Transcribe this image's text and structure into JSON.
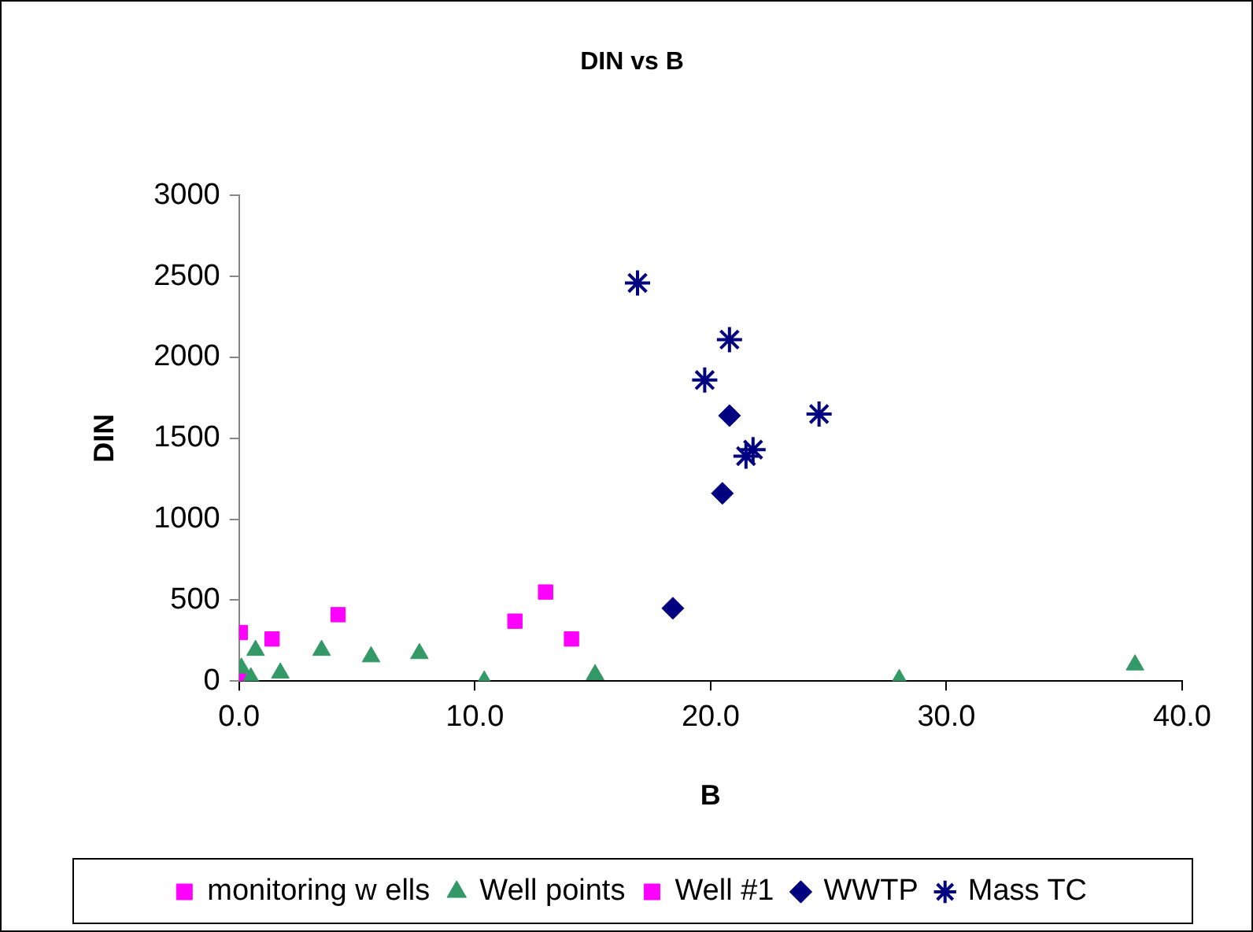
{
  "chart_data": {
    "type": "scatter",
    "title": "DIN vs B",
    "xlabel": "B",
    "ylabel": "DIN",
    "xlim": [
      0,
      40
    ],
    "xticks": [
      {
        "value": 0,
        "label": "0.0"
      },
      {
        "value": 10,
        "label": "10.0"
      },
      {
        "value": 20,
        "label": "20.0"
      },
      {
        "value": 30,
        "label": "30.0"
      },
      {
        "value": 40,
        "label": "40.0"
      }
    ],
    "ylim": [
      0,
      3000
    ],
    "yticks": [
      0,
      500,
      1000,
      1500,
      2000,
      2500,
      3000
    ],
    "grid": false,
    "legend": "bottom",
    "series": [
      {
        "name": "monitoring w ells",
        "color": "#ff00ff",
        "marker": "square",
        "x": [
          0.05,
          1.4,
          4.2,
          11.7,
          13.0,
          14.1
        ],
        "values": [
          300,
          260,
          410,
          370,
          550,
          260
        ]
      },
      {
        "name": "Well points",
        "color": "#339966",
        "marker": "triangle",
        "x": [
          0.1,
          0.7,
          0.5,
          1.75,
          3.5,
          5.6,
          7.65,
          10.4,
          15.1,
          28.0,
          38.0
        ],
        "values": [
          80,
          190,
          20,
          50,
          190,
          150,
          170,
          0,
          40,
          10,
          100
        ]
      },
      {
        "name": "Well #1",
        "color": "#ff00ff",
        "marker": "square",
        "x": [
          0
        ],
        "values": [
          10
        ]
      },
      {
        "name": "WWTP",
        "color": "#000080",
        "marker": "diamond",
        "x": [
          20.8,
          20.5,
          18.4
        ],
        "values": [
          1640,
          1160,
          450
        ]
      },
      {
        "name": "Mass TC",
        "color": "#000080",
        "marker": "cross",
        "x": [
          16.9,
          20.8,
          19.75,
          24.6,
          21.8,
          21.5
        ],
        "values": [
          2460,
          2110,
          1860,
          1650,
          1430,
          1390
        ]
      }
    ]
  }
}
